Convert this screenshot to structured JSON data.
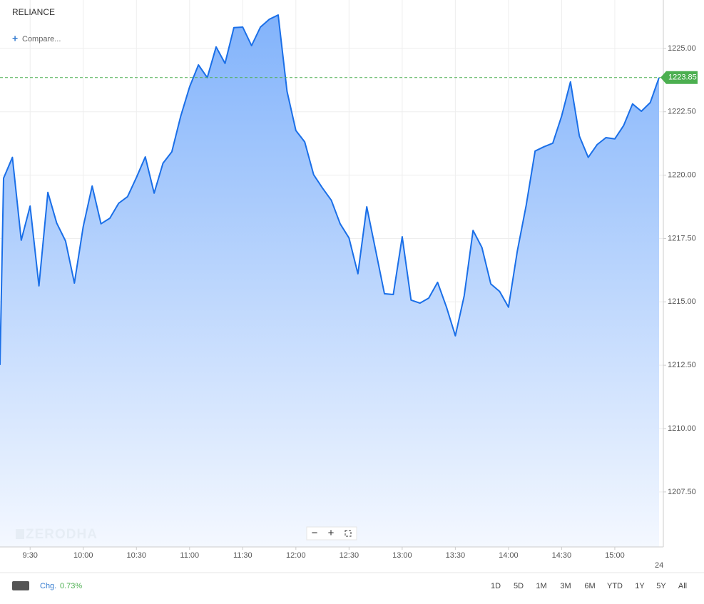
{
  "chart_data": {
    "type": "area",
    "title": "RELIANCE",
    "x": [
      553,
      555,
      560,
      565,
      570,
      575,
      580,
      585,
      590,
      595,
      600,
      605,
      610,
      615,
      620,
      625,
      630,
      635,
      640,
      645,
      650,
      655,
      660,
      665,
      670,
      675,
      680,
      685,
      690,
      695,
      700,
      705,
      710,
      715,
      720,
      725,
      730,
      735,
      740,
      745,
      750,
      755,
      760,
      765,
      770,
      775,
      780,
      785,
      790,
      795,
      800,
      805,
      810,
      815,
      820,
      825,
      830,
      835,
      840,
      845,
      850,
      855,
      860,
      865,
      870,
      875,
      880,
      885,
      890,
      895,
      900,
      905,
      910,
      915,
      920,
      925
    ],
    "values": [
      1212.51,
      1219.88,
      1220.7,
      1217.43,
      1218.78,
      1215.63,
      1219.32,
      1218.11,
      1217.4,
      1215.74,
      1217.97,
      1219.57,
      1218.08,
      1218.3,
      1218.89,
      1219.15,
      1219.91,
      1220.72,
      1219.29,
      1220.47,
      1220.92,
      1222.33,
      1223.48,
      1224.35,
      1223.85,
      1225.06,
      1224.41,
      1225.82,
      1225.84,
      1225.11,
      1225.84,
      1226.15,
      1226.32,
      1223.31,
      1221.76,
      1221.31,
      1220.02,
      1219.49,
      1219.01,
      1218.08,
      1217.52,
      1216.11,
      1218.75,
      1217.04,
      1215.32,
      1215.29,
      1217.57,
      1215.07,
      1214.95,
      1215.15,
      1215.77,
      1214.79,
      1213.66,
      1215.24,
      1217.82,
      1217.15,
      1215.71,
      1215.41,
      1214.79,
      1217.01,
      1218.81,
      1220.95,
      1221.12,
      1221.26,
      1222.33,
      1223.68,
      1221.54,
      1220.7,
      1221.2,
      1221.48,
      1221.43,
      1221.96,
      1222.81,
      1222.52,
      1222.86,
      1223.85
    ],
    "color": "#1a6fe8",
    "last_price": 1223.85,
    "last_price_color": "#4caf50",
    "xlim": [
      553,
      927.4
    ],
    "xticks": [
      {
        "value": 570,
        "label": "9:30"
      },
      {
        "value": 600,
        "label": "10:00"
      },
      {
        "value": 630,
        "label": "10:30"
      },
      {
        "value": 660,
        "label": "11:00"
      },
      {
        "value": 690,
        "label": "11:30"
      },
      {
        "value": 720,
        "label": "12:00"
      },
      {
        "value": 750,
        "label": "12:30"
      },
      {
        "value": 780,
        "label": "13:00"
      },
      {
        "value": 810,
        "label": "13:30"
      },
      {
        "value": 840,
        "label": "14:00"
      },
      {
        "value": 870,
        "label": "14:30"
      },
      {
        "value": 900,
        "label": "15:00"
      }
    ],
    "date_marker": "24",
    "ylim": [
      1205.33,
      1226.91
    ],
    "yticks": [
      {
        "value": 1207.5,
        "label": "1207.50"
      },
      {
        "value": 1210,
        "label": "1210.00"
      },
      {
        "value": 1212.5,
        "label": "1212.50"
      },
      {
        "value": 1215,
        "label": "1215.00"
      },
      {
        "value": 1217.5,
        "label": "1217.50"
      },
      {
        "value": 1220,
        "label": "1220.00"
      },
      {
        "value": 1222.5,
        "label": "1222.50"
      },
      {
        "value": 1225,
        "label": "1225.00"
      }
    ],
    "grid": true
  },
  "ui": {
    "compare": "Compare...",
    "watermark": "ZERODHA",
    "change_label": "Chg.",
    "change_value": "0.73%",
    "ranges": [
      "1D",
      "5D",
      "1M",
      "3M",
      "6M",
      "YTD",
      "1Y",
      "5Y",
      "All"
    ]
  }
}
